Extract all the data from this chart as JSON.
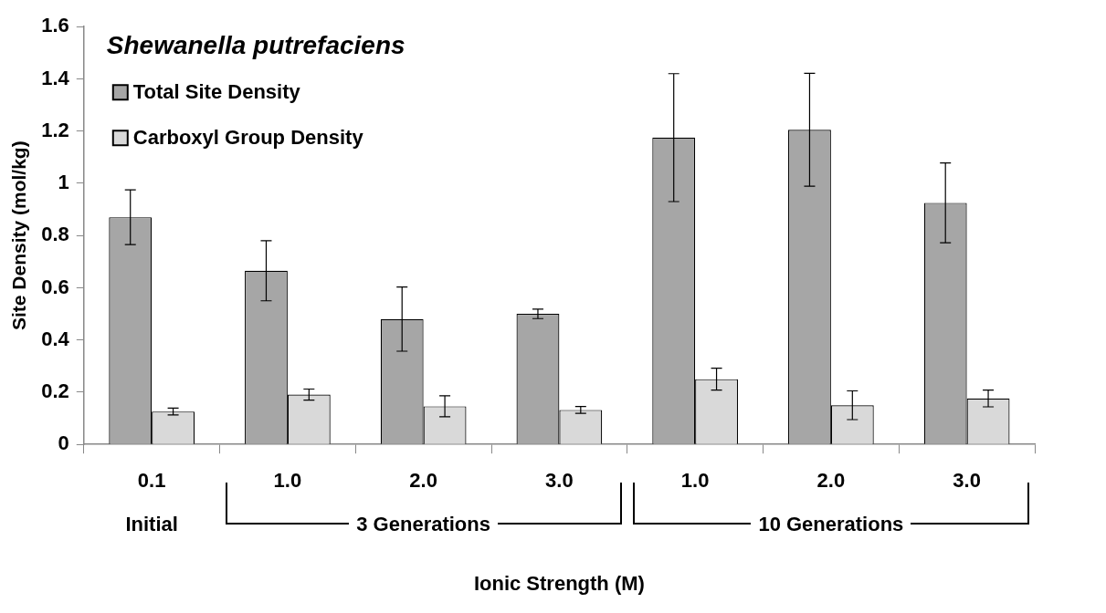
{
  "chart_data": {
    "type": "bar",
    "title": "Shewanella putrefaciens",
    "xlabel": "Ionic Strength (M)",
    "ylabel": "Site Density (mol/kg)",
    "categories": [
      "0.1",
      "1.0",
      "2.0",
      "3.0",
      "1.0",
      "2.0",
      "3.0"
    ],
    "series": [
      {
        "name": "Total Site Density",
        "color": "#a6a6a6",
        "values": [
          0.87,
          0.665,
          0.48,
          0.5,
          1.175,
          1.205,
          0.925
        ],
        "errors": [
          0.105,
          0.115,
          0.123,
          0.018,
          0.245,
          0.216,
          0.153
        ]
      },
      {
        "name": "Carboxyl Group Density",
        "color": "#d9d9d9",
        "values": [
          0.126,
          0.191,
          0.146,
          0.132,
          0.25,
          0.15,
          0.176
        ],
        "errors": [
          0.013,
          0.021,
          0.04,
          0.013,
          0.042,
          0.055,
          0.032
        ]
      }
    ],
    "annotations": [
      "Initial",
      "3 Generations",
      "10 Generations"
    ],
    "ylim": [
      0,
      1.6
    ],
    "yticks": [
      0,
      0.2,
      0.4,
      0.6,
      0.8,
      1,
      1.2,
      1.4,
      1.6
    ],
    "grid": false,
    "legend": "top left"
  }
}
